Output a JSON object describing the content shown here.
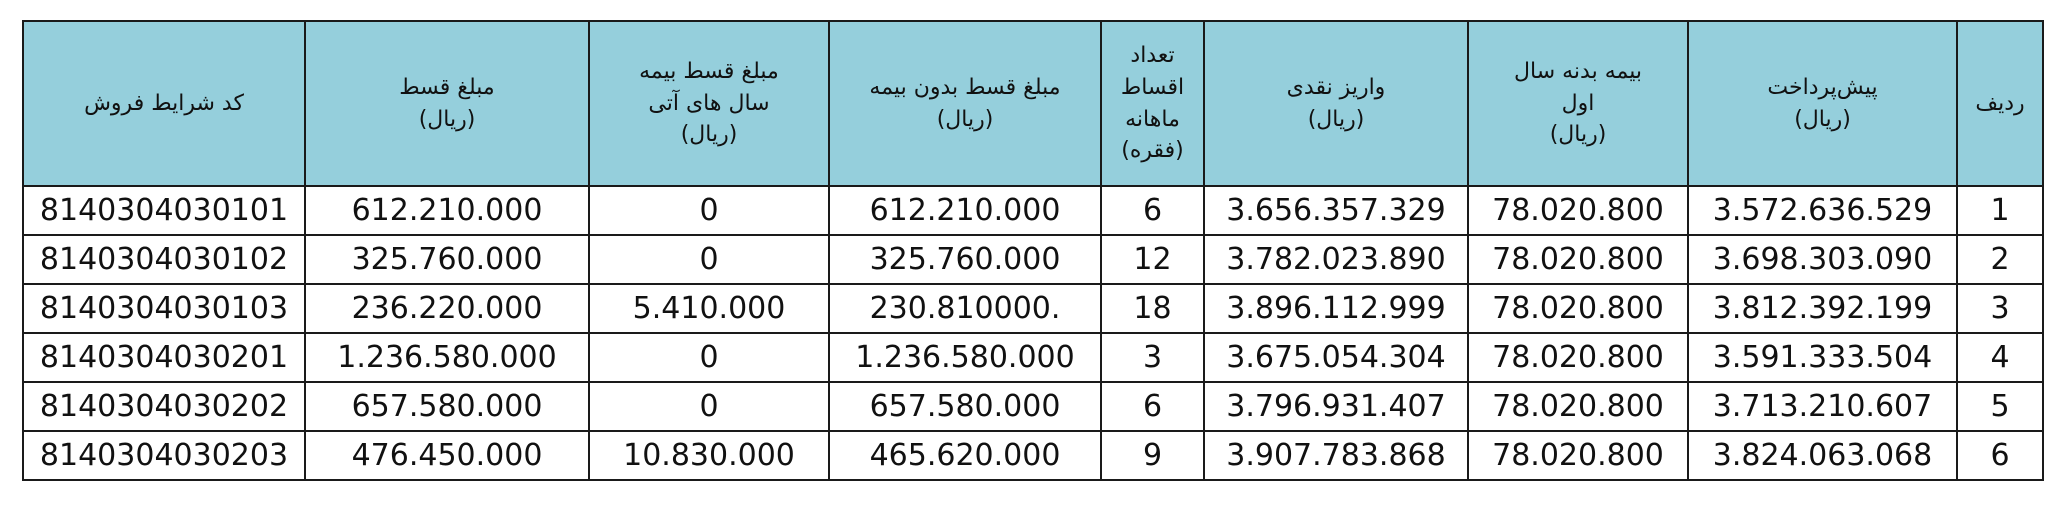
{
  "header_bg": "#95cfdc",
  "headers": [
    {
      "lines": [
        "ردیف"
      ]
    },
    {
      "lines": [
        "پیش‌پرداخت",
        "(ریال)"
      ]
    },
    {
      "lines": [
        "بیمه بدنه  سال",
        "اول",
        "(ریال)"
      ]
    },
    {
      "lines": [
        "واریز نقدی",
        "(ریال)"
      ]
    },
    {
      "lines": [
        "تعداد",
        "اقساط",
        "ماهانه",
        "(فقره)"
      ]
    },
    {
      "lines": [
        "مبلغ قسط  بدون بیمه",
        "(ریال)"
      ]
    },
    {
      "lines": [
        "مبلغ قسط بیمه",
        "سال های آتی",
        "(ریال)"
      ]
    },
    {
      "lines": [
        "مبلغ قسط",
        "(ریال)"
      ]
    },
    {
      "lines": [
        "کد شرایط فروش"
      ]
    }
  ],
  "rows": [
    [
      "1",
      "3.572.636.529",
      "78.020.800",
      "3.656.357.329",
      "6",
      "612.210.000",
      "0",
      "612.210.000",
      "8140304030101"
    ],
    [
      "2",
      "3.698.303.090",
      "78.020.800",
      "3.782.023.890",
      "12",
      "325.760.000",
      "0",
      "325.760.000",
      "8140304030102"
    ],
    [
      "3",
      "3.812.392.199",
      "78.020.800",
      "3.896.112.999",
      "18",
      ".230.810000",
      "5.410.000",
      "236.220.000",
      "8140304030103"
    ],
    [
      "4",
      "3.591.333.504",
      "78.020.800",
      "3.675.054.304",
      "3",
      "1.236.580.000",
      "0",
      "1.236.580.000",
      "8140304030201"
    ],
    [
      "5",
      "3.713.210.607",
      "78.020.800",
      "3.796.931.407",
      "6",
      "657.580.000",
      "0",
      "657.580.000",
      "8140304030202"
    ],
    [
      "6",
      "3.824.063.068",
      "78.020.800",
      "3.907.783.868",
      "9",
      "465.620.000",
      "10.830.000",
      "476.450.000",
      "8140304030203"
    ]
  ]
}
